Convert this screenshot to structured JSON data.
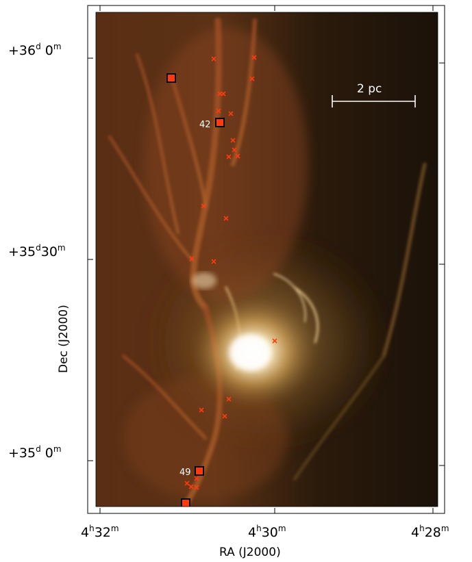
{
  "image": {
    "description_type": "astronomical-false-color",
    "colors": {
      "nebula_glow": "#ffe9b0",
      "filament_orange": "#b8632a",
      "background_dark": "#1a1208",
      "marker_red": "#ff3a10"
    }
  },
  "axes": {
    "xlabel": "RA (J2000)",
    "ylabel": "Dec (J2000)",
    "x_ticks": [
      {
        "h": "4",
        "m": "32"
      },
      {
        "h": "4",
        "m": "30"
      },
      {
        "h": "4",
        "m": "28"
      }
    ],
    "y_ticks": [
      {
        "deg": "+36",
        "min": "0"
      },
      {
        "deg": "+35",
        "min": "30"
      },
      {
        "deg": "+35",
        "min": "0"
      }
    ],
    "unit_h": "h",
    "unit_m": "m",
    "unit_d": "d"
  },
  "scale_bar": {
    "label": "2 pc"
  },
  "sources": {
    "labeled": [
      {
        "label": "42"
      },
      {
        "label": "49"
      }
    ]
  }
}
